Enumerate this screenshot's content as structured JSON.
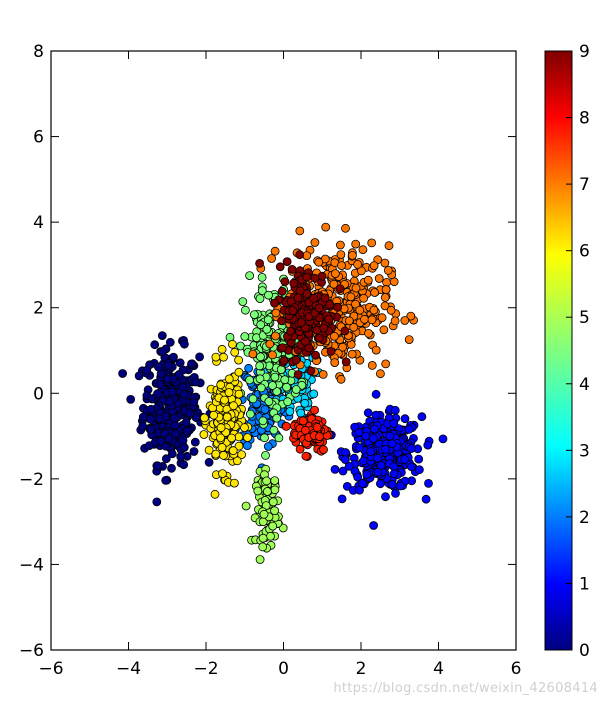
{
  "chart_data": {
    "type": "scatter",
    "title": "",
    "xlabel": "",
    "ylabel": "",
    "xlim": [
      -6,
      6
    ],
    "ylim": [
      -6,
      8
    ],
    "xticks": [
      "−6",
      "−4",
      "−2",
      "0",
      "2",
      "4",
      "6"
    ],
    "yticks": [
      "−6",
      "−4",
      "−2",
      "0",
      "2",
      "4",
      "6",
      "8"
    ],
    "x_tick_values": [
      -6,
      -4,
      -2,
      0,
      2,
      4,
      6
    ],
    "y_tick_values": [
      -6,
      -4,
      -2,
      0,
      2,
      4,
      6,
      8
    ],
    "grid": false,
    "colormap": "jet",
    "colorbar": {
      "range": [
        0,
        9
      ],
      "tick_values": [
        0,
        1,
        2,
        3,
        4,
        5,
        6,
        7,
        8,
        9
      ],
      "ticks": [
        "0",
        "1",
        "2",
        "3",
        "4",
        "5",
        "6",
        "7",
        "8",
        "9"
      ]
    },
    "clusters": [
      {
        "label": 0,
        "color": "#00007f",
        "center": [
          -2.9,
          -0.3
        ],
        "spread": [
          0.6,
          1.1
        ],
        "count": 300
      },
      {
        "label": 1,
        "color": "#0000ff",
        "center": [
          2.6,
          -1.4
        ],
        "spread": [
          0.8,
          0.7
        ],
        "count": 300
      },
      {
        "label": 2,
        "color": "#007fff",
        "center": [
          -0.5,
          -0.2
        ],
        "spread": [
          0.5,
          0.9
        ],
        "count": 150
      },
      {
        "label": 3,
        "color": "#00d4ff",
        "center": [
          0.2,
          0.3
        ],
        "spread": [
          0.5,
          0.8
        ],
        "count": 100
      },
      {
        "label": 4,
        "color": "#7cff79",
        "center": [
          -0.3,
          1.0
        ],
        "spread": [
          0.6,
          1.3
        ],
        "count": 180
      },
      {
        "label": 5,
        "color": "#a0ff56",
        "center": [
          -0.4,
          -2.7
        ],
        "spread": [
          0.25,
          0.7
        ],
        "count": 90
      },
      {
        "label": 6,
        "color": "#ffe600",
        "center": [
          -1.5,
          -0.6
        ],
        "spread": [
          0.35,
          1.0
        ],
        "count": 200
      },
      {
        "label": 7,
        "color": "#ff7700",
        "center": [
          1.4,
          2.0
        ],
        "spread": [
          1.1,
          1.2
        ],
        "count": 320
      },
      {
        "label": 8,
        "color": "#ff1e00",
        "center": [
          0.7,
          -0.9
        ],
        "spread": [
          0.4,
          0.4
        ],
        "count": 90
      },
      {
        "label": 9,
        "color": "#7f0000",
        "center": [
          0.6,
          1.9
        ],
        "spread": [
          0.6,
          0.9
        ],
        "count": 180
      }
    ]
  },
  "watermark": "https://blog.csdn.net/weixin_42608414"
}
